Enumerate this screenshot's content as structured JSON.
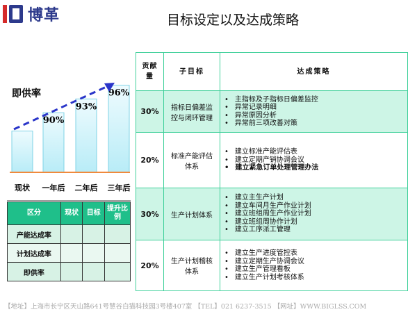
{
  "logo": {
    "text": "博革"
  },
  "title": "目标设定以及达成策略",
  "chart_data": {
    "type": "bar",
    "title": "即供率",
    "categories": [
      "现状",
      "一年后",
      "二年后",
      "三年后"
    ],
    "values": [
      86,
      90,
      93,
      96
    ],
    "data_labels": [
      "",
      "90%",
      "93%",
      "96%"
    ],
    "bar_color": "#b8ecf7",
    "baseline_color": "#f08a3c",
    "trend_arrow_color": "#2a35c9",
    "trend": "dashed-arrow-up"
  },
  "left_table": {
    "headers": [
      "区分",
      "现状",
      "目标",
      "提升比例"
    ],
    "rows": [
      [
        "产能达成率",
        "",
        "",
        ""
      ],
      [
        "计划达成率",
        "",
        "",
        ""
      ],
      [
        "即供率",
        "",
        "",
        ""
      ]
    ]
  },
  "right_table": {
    "headers": [
      "贡献量",
      "子目标",
      "达成策略"
    ],
    "rows": [
      {
        "pct": "30%",
        "goal": "指标日偏差监控与闭环管理",
        "items": [
          "主指标及子指标日偏差监控",
          "异常记录明细",
          "异常原因分析",
          "异常前三项改善对策"
        ]
      },
      {
        "pct": "20%",
        "goal": "标准产能评估体系",
        "items": [
          "建立标准产能评估表",
          "建立定期产销协调会议",
          "建立紧急订单处理管理办法"
        ]
      },
      {
        "pct": "30%",
        "goal": "生产计划体系",
        "items": [
          "建立主生产计划",
          "建立车间月生产作业计划",
          "建立班组周生产作业计划",
          "建立班组周协作计划",
          "建立工序派工管理"
        ]
      },
      {
        "pct": "20%",
        "goal": "生产计划稽核体系",
        "items": [
          "建立生产进度管控表",
          "建立定期生产协调会议",
          "建立生产管理看板",
          "建立生产计划考核体系"
        ]
      }
    ]
  },
  "footer": "【地址】上海市长宁区天山路641号慧谷白猫科技园3号楼407室 【TEL】021 6237-3515 【网址】WWW.BIGLSS.COM"
}
